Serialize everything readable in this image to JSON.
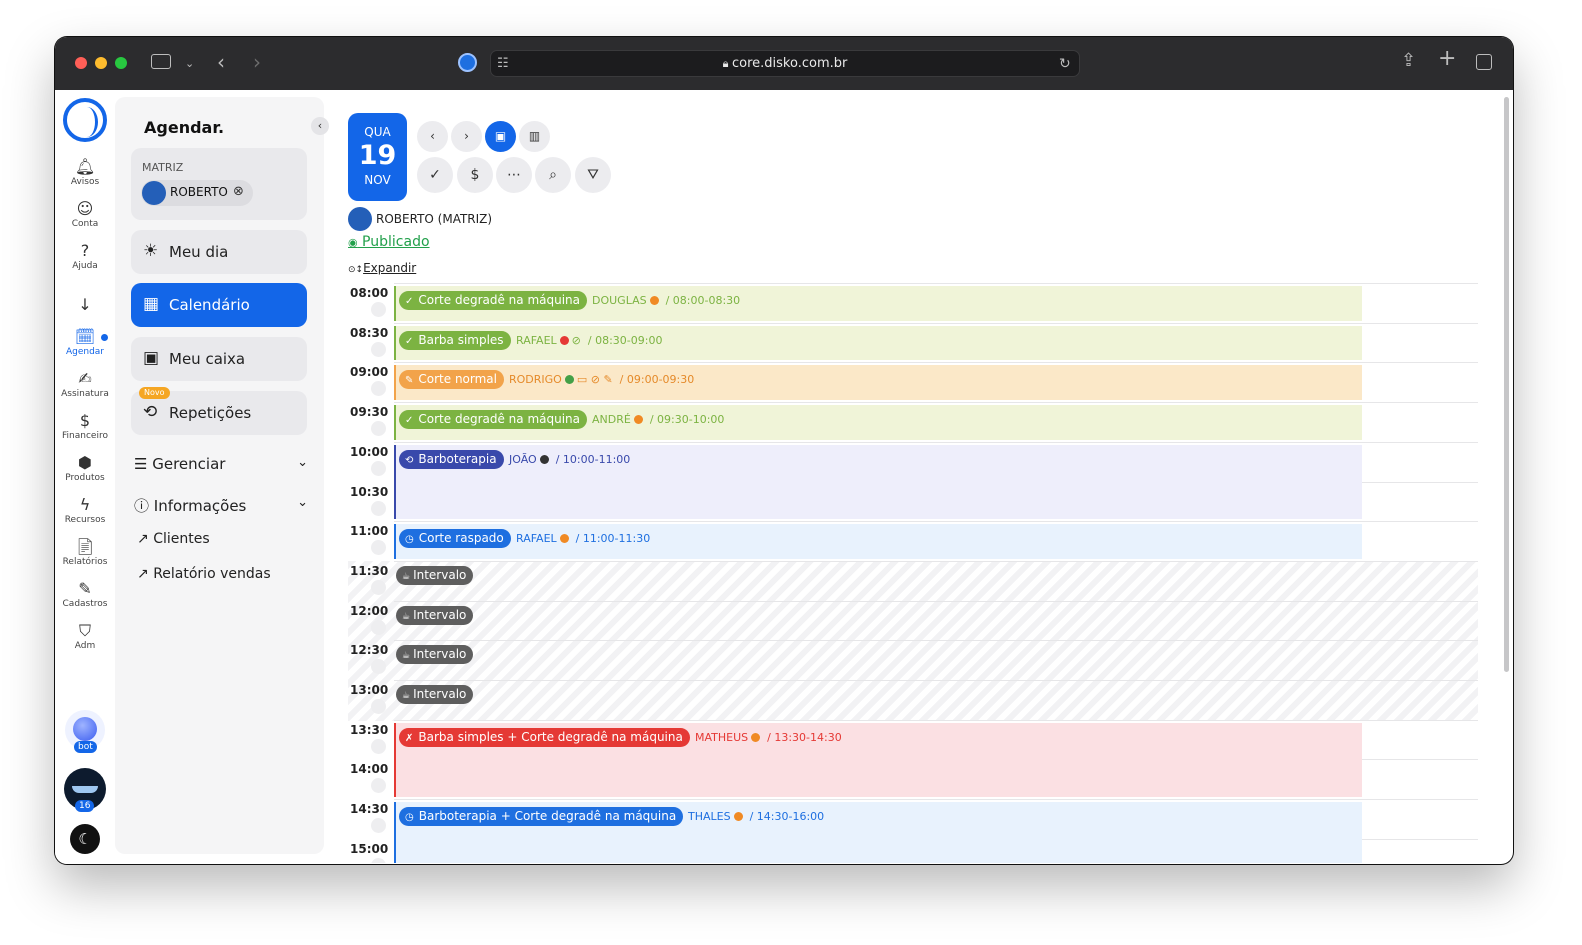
{
  "browser": {
    "url": "core.disko.com.br"
  },
  "rail": {
    "items": [
      {
        "icon": "bell-icon",
        "glyph": "🔔︎",
        "label": "Avisos"
      },
      {
        "icon": "user-circle-icon",
        "glyph": "☺",
        "label": "Conta"
      },
      {
        "icon": "help-icon",
        "glyph": "?",
        "label": "Ajuda"
      },
      {
        "icon": "arrow-down-icon",
        "glyph": "↓",
        "label": ""
      },
      {
        "icon": "calendar-icon",
        "glyph": "🗓︎",
        "label": "Agendar"
      },
      {
        "icon": "signature-icon",
        "glyph": "✍︎",
        "label": "Assinatura"
      },
      {
        "icon": "dollar-icon",
        "glyph": "$",
        "label": "Financeiro"
      },
      {
        "icon": "box-icon",
        "glyph": "⬢",
        "label": "Produtos"
      },
      {
        "icon": "bolt-icon",
        "glyph": "ϟ",
        "label": "Recursos"
      },
      {
        "icon": "report-icon",
        "glyph": "📄︎",
        "label": "Relatórios"
      },
      {
        "icon": "file-edit-icon",
        "glyph": "✎",
        "label": "Cadastros"
      },
      {
        "icon": "shield-icon",
        "glyph": "⛉",
        "label": "Adm"
      }
    ],
    "bot_label": "bot",
    "avatar_badge": "16"
  },
  "panel": {
    "title": "Agendar.",
    "branch": "MATRIZ",
    "professional": "ROBERTO",
    "menu": [
      {
        "label": "Meu dia",
        "glyph": "☀︎"
      },
      {
        "label": "Calendário",
        "glyph": "▦"
      },
      {
        "label": "Meu caixa",
        "glyph": "▣"
      },
      {
        "label": "Repetições",
        "glyph": "⟲"
      }
    ],
    "new_badge": "Novo",
    "sections": [
      {
        "label": "Gerenciar",
        "glyph": "☰"
      },
      {
        "label": "Informações",
        "glyph": "ⓘ"
      }
    ],
    "links": [
      {
        "label": "Clientes"
      },
      {
        "label": "Relatório vendas"
      }
    ]
  },
  "calendar": {
    "weekday": "QUA",
    "day": "19",
    "month": "NOV",
    "professional": "ROBERTO (MATRIZ)",
    "status": " Publicado",
    "expand": "Expandir"
  },
  "times": [
    "08:00",
    "08:30",
    "09:00",
    "09:30",
    "10:00",
    "10:30",
    "11:00",
    "11:30",
    "12:00",
    "12:30",
    "13:00",
    "13:30",
    "14:00",
    "14:30",
    "15:00"
  ],
  "events": [
    {
      "slot": 0,
      "span": 1,
      "service": "Corte degradê na máquina",
      "icon": "✓",
      "pro": "DOUGLAS",
      "time": "/ 08:00-08:30",
      "pro_dot": "#f08a24",
      "extra": "",
      "tag": "#7cb342",
      "text": "#7cb342",
      "bg": "#f0f4d8",
      "border": "#7cb342"
    },
    {
      "slot": 1,
      "span": 1,
      "service": "Barba simples",
      "icon": "✓",
      "pro": "RAFAEL",
      "time": "/ 08:30-09:00",
      "pro_dot": "#e53935",
      "extra": "⊘",
      "tag": "#7cb342",
      "text": "#7cb342",
      "bg": "#f0f4d8",
      "border": "#7cb342"
    },
    {
      "slot": 2,
      "span": 1,
      "service": "Corte normal",
      "icon": "✎",
      "pro": "RODRIGO",
      "time": "/ 09:00-09:30",
      "pro_dot": "#43a047",
      "extra": "▭ ⊘ ✎",
      "tag": "#f2a34a",
      "text": "#e58a2a",
      "bg": "#fbe8c8",
      "border": "#f2a34a"
    },
    {
      "slot": 3,
      "span": 1,
      "service": "Corte degradê na máquina",
      "icon": "✓",
      "pro": "ANDRÉ",
      "time": "/ 09:30-10:00",
      "pro_dot": "#f08a24",
      "extra": "",
      "tag": "#7cb342",
      "text": "#7cb342",
      "bg": "#f0f4d8",
      "border": "#7cb342"
    },
    {
      "slot": 4,
      "span": 2,
      "service": "Barboterapia",
      "icon": "⟲",
      "pro": "JOÃO",
      "time": "/ 10:00-11:00",
      "pro_dot": "#333333",
      "extra": "",
      "tag": "#3949ab",
      "text": "#3949ab",
      "bg": "#eeeefb",
      "border": "#3949ab"
    },
    {
      "slot": 6,
      "span": 1,
      "service": "Corte raspado",
      "icon": "◷",
      "pro": "RAFAEL",
      "time": "/ 11:00-11:30",
      "pro_dot": "#f08a24",
      "extra": "",
      "tag": "#1e6fe0",
      "text": "#1e6fe0",
      "bg": "#e8f2fd",
      "border": "#1e6fe0"
    },
    {
      "slot": 11,
      "span": 2,
      "service": "Barba simples + Corte degradê na máquina",
      "icon": "✗",
      "pro": "MATHEUS",
      "time": "/ 13:30-14:30",
      "pro_dot": "#f08a24",
      "extra": "",
      "tag": "#e53935",
      "text": "#e53935",
      "bg": "#fbe0e3",
      "border": "#e53935"
    },
    {
      "slot": 13,
      "span": 2,
      "service": "Barboterapia + Corte degradê na máquina",
      "icon": "◷",
      "pro": "THALES",
      "time": "/ 14:30-16:00",
      "pro_dot": "#f08a24",
      "extra": "",
      "tag": "#1e6fe0",
      "text": "#1e6fe0",
      "bg": "#e8f2fd",
      "border": "#1e6fe0"
    }
  ],
  "intervals": [
    {
      "slot": 7,
      "label": "Intervalo"
    },
    {
      "slot": 8,
      "label": "Intervalo"
    },
    {
      "slot": 9,
      "label": "Intervalo"
    },
    {
      "slot": 10,
      "label": "Intervalo"
    }
  ]
}
